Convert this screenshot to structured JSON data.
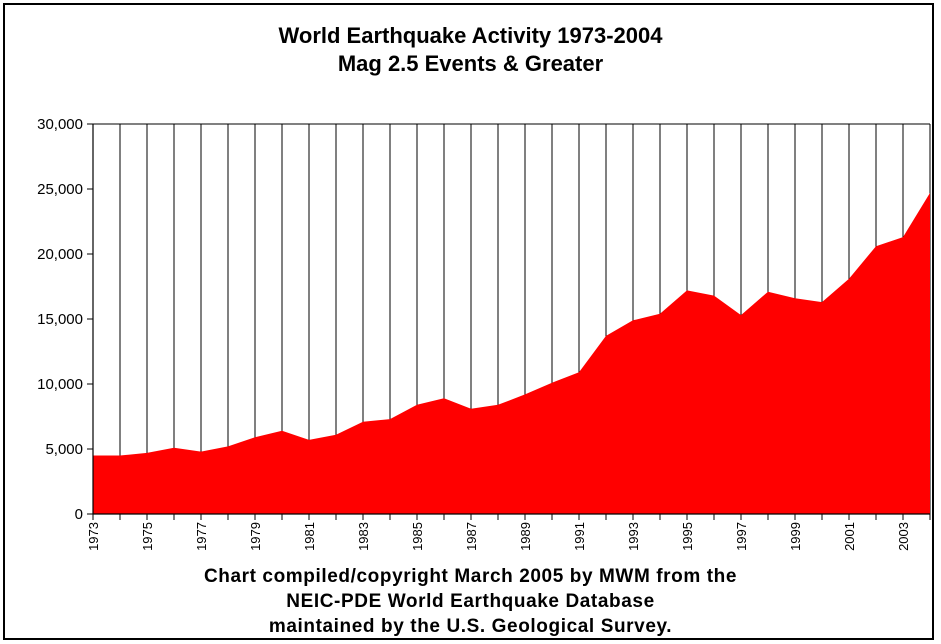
{
  "chart_data": {
    "type": "area",
    "title": "World Earthquake Activity 1973-2004",
    "subtitle": "Mag 2.5 Events & Greater",
    "xlabel": "",
    "ylabel": "",
    "x": [
      1973,
      1974,
      1975,
      1976,
      1977,
      1978,
      1979,
      1980,
      1981,
      1982,
      1983,
      1984,
      1985,
      1986,
      1987,
      1988,
      1989,
      1990,
      1991,
      1992,
      1993,
      1994,
      1995,
      1996,
      1997,
      1998,
      1999,
      2000,
      2001,
      2002,
      2003,
      2004
    ],
    "series": [
      {
        "values": [
          4500,
          4500,
          4700,
          5100,
          4800,
          5200,
          5900,
          6400,
          5700,
          6100,
          7100,
          7300,
          8400,
          8900,
          8100,
          8400,
          9200,
          10100,
          10900,
          13700,
          14900,
          15400,
          17200,
          16800,
          15300,
          17100,
          16600,
          16300,
          18100,
          20600,
          21300,
          24700
        ],
        "color": "#ff0000"
      }
    ],
    "ylim": [
      0,
      30000
    ],
    "yticks": [
      0,
      5000,
      10000,
      15000,
      20000,
      25000,
      30000
    ],
    "ytick_labels": [
      "0",
      "5,000",
      "10,000",
      "15,000",
      "20,000",
      "25,000",
      "30,000"
    ],
    "xtick_labels": [
      "1973",
      "1975",
      "1977",
      "1979",
      "1981",
      "1983",
      "1985",
      "1987",
      "1989",
      "1991",
      "1993",
      "1995",
      "1997",
      "1999",
      "2001",
      "2003"
    ],
    "grid": "vertical",
    "legend": "none"
  },
  "footer": {
    "line1": "Chart compiled/copyright March 2005 by MWM from the",
    "line2": "NEIC-PDE World Earthquake Database",
    "line3": "maintained by the U.S. Geological Survey."
  },
  "colors": {
    "area_fill": "#ff0000",
    "gridline": "#000000",
    "background": "#ffffff"
  }
}
